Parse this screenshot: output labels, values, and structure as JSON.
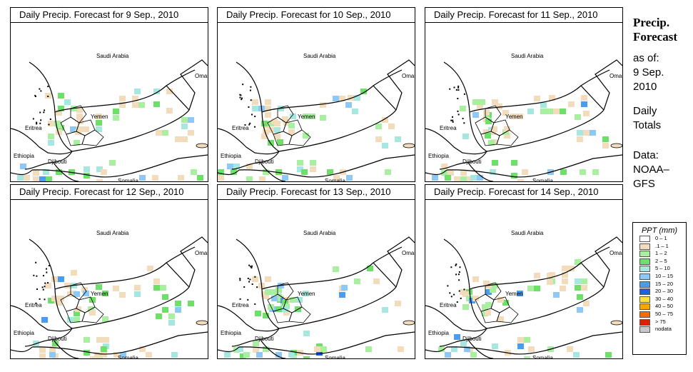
{
  "panels": [
    {
      "title": "Daily Precip. Forecast for  9 Sep., 2010",
      "seed": 3,
      "country_labels": [
        "Saudi Arabia",
        "Oman",
        "Yemen",
        "Eritrea",
        "Ethiopia",
        "Djibouti",
        "Somalia"
      ]
    },
    {
      "title": "Daily Precip. Forecast for  10 Sep., 2010",
      "seed": 7,
      "country_labels": [
        "Saudi Arabia",
        "Oman",
        "Yemen",
        "Eritrea",
        "Ethiopia",
        "Djibouti",
        "Somalia"
      ]
    },
    {
      "title": "Daily Precip. Forecast for  11 Sep., 2010",
      "seed": 11,
      "country_labels": [
        "Saudi Arabia",
        "Oman",
        "Yemen",
        "Eritrea",
        "Ethiopia",
        "Djibouti",
        "Somalia"
      ]
    },
    {
      "title": "Daily Precip. Forecast for  12 Sep., 2010",
      "seed": 19,
      "country_labels": [
        "Saudi Arabia",
        "Oman",
        "Yemen",
        "Eritrea",
        "Ethiopia",
        "Djibouti",
        "Somalia"
      ]
    },
    {
      "title": "Daily Precip. Forecast for  13 Sep., 2010",
      "seed": 23,
      "country_labels": [
        "Saudi Arabia",
        "Oman",
        "Yemen",
        "Eritrea",
        "Ethiopia",
        "Djibouti",
        "Somalia"
      ]
    },
    {
      "title": "Daily Precip. Forecast for  14 Sep., 2010",
      "seed": 31,
      "country_labels": [
        "Saudi Arabia",
        "Oman",
        "Yemen",
        "Eritrea",
        "Ethiopia",
        "Djibouti",
        "Somalia"
      ]
    }
  ],
  "sidebar": {
    "title_line1": "Precip.",
    "title_line2": "Forecast",
    "asof_line1": "as of:",
    "asof_line2": "9 Sep.",
    "asof_line3": "2010",
    "daily_line1": "Daily",
    "daily_line2": "Totals",
    "data_line1": "Data:",
    "data_line2": "NOAA–",
    "data_line3": "GFS"
  },
  "legend": {
    "title": "PPT (mm)",
    "items": [
      {
        "label": "0 – 1",
        "color": "#ffffff"
      },
      {
        "label": ".1 – 1",
        "color": "#f2dcbc"
      },
      {
        "label": "1 – 2",
        "color": "#a8f0a0"
      },
      {
        "label": "2 – 5",
        "color": "#6ee06a"
      },
      {
        "label": "5 – 10",
        "color": "#a6e8e0"
      },
      {
        "label": "10 – 15",
        "color": "#8ec8f6"
      },
      {
        "label": "15 – 20",
        "color": "#4a9cf2"
      },
      {
        "label": "20 – 30",
        "color": "#2060e0"
      },
      {
        "label": "30 – 40",
        "color": "#ffe040"
      },
      {
        "label": "40 – 50",
        "color": "#ffa500"
      },
      {
        "label": "50 – 75",
        "color": "#ff6a00"
      },
      {
        "label": "> 75",
        "color": "#e02000"
      },
      {
        "label": "nodata",
        "color": "#c8c8c8"
      }
    ]
  }
}
